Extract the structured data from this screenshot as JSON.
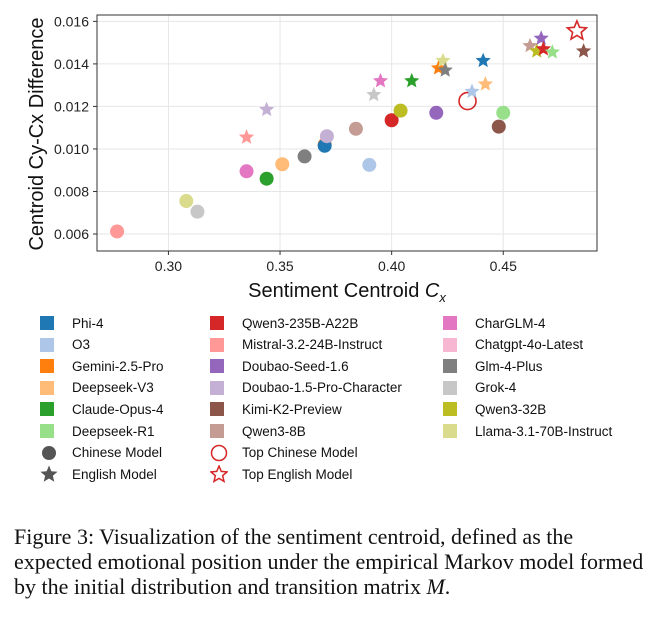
{
  "chart_data": {
    "type": "scatter",
    "xlabel_prefix": "Sentiment Centroid ",
    "xlabel_var": "C",
    "xlabel_sub": "x",
    "ylabel": "Centroid Cy-Cx Difference",
    "xlim": [
      0.268,
      0.492
    ],
    "ylim": [
      0.0052,
      0.0163
    ],
    "xticks": [
      0.3,
      0.35,
      0.4,
      0.45
    ],
    "xtick_labels": [
      "0.30",
      "0.35",
      "0.40",
      "0.45"
    ],
    "yticks": [
      0.006,
      0.008,
      0.01,
      0.012,
      0.014,
      0.016
    ],
    "ytick_labels": [
      "0.006",
      "0.008",
      "0.010",
      "0.012",
      "0.014",
      "0.016"
    ],
    "grid": true,
    "colors": {
      "phi4": "#1f77b4",
      "o3": "#aec7e8",
      "gemini": "#ff7f0e",
      "deepseekv3": "#ffbb78",
      "claude": "#2ca02c",
      "deepseekr1": "#98df8a",
      "qwen235": "#d62728",
      "mistral": "#ff9896",
      "doubaoseed": "#9467bd",
      "doubaochar": "#c5b0d5",
      "kimi": "#8c564b",
      "qwen8b": "#c49c94",
      "charglm": "#e377c2",
      "chatgpt": "#f7b6d2",
      "glm4": "#7f7f7f",
      "grok4": "#c7c7c7",
      "qwen32b": "#bcbd22",
      "llama": "#dbdb8d",
      "top": "#d62728"
    },
    "points": [
      {
        "x": 0.277,
        "y": 0.00612,
        "model": "mistral",
        "shape": "circle"
      },
      {
        "x": 0.308,
        "y": 0.00755,
        "model": "llama",
        "shape": "circle"
      },
      {
        "x": 0.313,
        "y": 0.00705,
        "model": "grok4",
        "shape": "circle"
      },
      {
        "x": 0.335,
        "y": 0.00895,
        "model": "charglm",
        "shape": "circle"
      },
      {
        "x": 0.335,
        "y": 0.01055,
        "model": "mistral",
        "shape": "star"
      },
      {
        "x": 0.344,
        "y": 0.0086,
        "model": "claude",
        "shape": "circle"
      },
      {
        "x": 0.344,
        "y": 0.01185,
        "model": "doubaochar",
        "shape": "star"
      },
      {
        "x": 0.351,
        "y": 0.00928,
        "model": "deepseekv3",
        "shape": "circle"
      },
      {
        "x": 0.361,
        "y": 0.00965,
        "model": "glm4",
        "shape": "circle"
      },
      {
        "x": 0.37,
        "y": 0.0102,
        "model": "gemini",
        "shape": "circle"
      },
      {
        "x": 0.37,
        "y": 0.01015,
        "model": "phi4",
        "shape": "circle"
      },
      {
        "x": 0.371,
        "y": 0.0106,
        "model": "doubaochar",
        "shape": "circle"
      },
      {
        "x": 0.384,
        "y": 0.01095,
        "model": "qwen8b",
        "shape": "circle"
      },
      {
        "x": 0.39,
        "y": 0.00925,
        "model": "o3",
        "shape": "circle"
      },
      {
        "x": 0.392,
        "y": 0.01255,
        "model": "grok4",
        "shape": "star"
      },
      {
        "x": 0.395,
        "y": 0.0132,
        "model": "charglm",
        "shape": "star"
      },
      {
        "x": 0.4,
        "y": 0.01135,
        "model": "qwen235",
        "shape": "circle"
      },
      {
        "x": 0.404,
        "y": 0.0118,
        "model": "qwen32b",
        "shape": "circle"
      },
      {
        "x": 0.409,
        "y": 0.0132,
        "model": "claude",
        "shape": "star"
      },
      {
        "x": 0.42,
        "y": 0.0117,
        "model": "doubaoseed",
        "shape": "circle"
      },
      {
        "x": 0.421,
        "y": 0.0138,
        "model": "gemini",
        "shape": "star"
      },
      {
        "x": 0.423,
        "y": 0.01415,
        "model": "llama",
        "shape": "star"
      },
      {
        "x": 0.424,
        "y": 0.0137,
        "model": "glm4",
        "shape": "star"
      },
      {
        "x": 0.434,
        "y": 0.01225,
        "model": "top",
        "shape": "circle-open"
      },
      {
        "x": 0.436,
        "y": 0.0127,
        "model": "o3",
        "shape": "star"
      },
      {
        "x": 0.441,
        "y": 0.01415,
        "model": "phi4",
        "shape": "star"
      },
      {
        "x": 0.442,
        "y": 0.01305,
        "model": "deepseekv3",
        "shape": "star"
      },
      {
        "x": 0.448,
        "y": 0.01105,
        "model": "kimi",
        "shape": "circle"
      },
      {
        "x": 0.45,
        "y": 0.0117,
        "model": "deepseekr1",
        "shape": "circle"
      },
      {
        "x": 0.462,
        "y": 0.01485,
        "model": "qwen8b",
        "shape": "star"
      },
      {
        "x": 0.465,
        "y": 0.0146,
        "model": "qwen32b",
        "shape": "star"
      },
      {
        "x": 0.467,
        "y": 0.0152,
        "model": "doubaoseed",
        "shape": "star"
      },
      {
        "x": 0.468,
        "y": 0.0147,
        "model": "qwen235",
        "shape": "star"
      },
      {
        "x": 0.472,
        "y": 0.01455,
        "model": "deepseekr1",
        "shape": "star"
      },
      {
        "x": 0.483,
        "y": 0.01555,
        "model": "top",
        "shape": "star-open"
      },
      {
        "x": 0.486,
        "y": 0.0146,
        "model": "kimi",
        "shape": "star"
      }
    ]
  },
  "legend": {
    "columns": [
      [
        {
          "label": "Phi-4",
          "kind": "swatch",
          "color": "#1f77b4"
        },
        {
          "label": "O3",
          "kind": "swatch",
          "color": "#aec7e8"
        },
        {
          "label": "Gemini-2.5-Pro",
          "kind": "swatch",
          "color": "#ff7f0e"
        },
        {
          "label": "Deepseek-V3",
          "kind": "swatch",
          "color": "#ffbb78"
        },
        {
          "label": "Claude-Opus-4",
          "kind": "swatch",
          "color": "#2ca02c"
        },
        {
          "label": "Deepseek-R1",
          "kind": "swatch",
          "color": "#98df8a"
        },
        {
          "label": "Chinese Model",
          "kind": "circle",
          "color": "#555555"
        },
        {
          "label": "English Model",
          "kind": "star",
          "color": "#555555"
        }
      ],
      [
        {
          "label": "Qwen3-235B-A22B",
          "kind": "swatch",
          "color": "#d62728"
        },
        {
          "label": "Mistral-3.2-24B-Instruct",
          "kind": "swatch",
          "color": "#ff9896"
        },
        {
          "label": "Doubao-Seed-1.6",
          "kind": "swatch",
          "color": "#9467bd"
        },
        {
          "label": "Doubao-1.5-Pro-Character",
          "kind": "swatch",
          "color": "#c5b0d5"
        },
        {
          "label": "Kimi-K2-Preview",
          "kind": "swatch",
          "color": "#8c564b"
        },
        {
          "label": "Qwen3-8B",
          "kind": "swatch",
          "color": "#c49c94"
        },
        {
          "label": "Top Chinese Model",
          "kind": "circle-open",
          "color": "#d62728"
        },
        {
          "label": "Top English Model",
          "kind": "star-open",
          "color": "#d62728"
        }
      ],
      [
        {
          "label": "CharGLM-4",
          "kind": "swatch",
          "color": "#e377c2"
        },
        {
          "label": "Chatgpt-4o-Latest",
          "kind": "swatch",
          "color": "#f7b6d2"
        },
        {
          "label": "Glm-4-Plus",
          "kind": "swatch",
          "color": "#7f7f7f"
        },
        {
          "label": "Grok-4",
          "kind": "swatch",
          "color": "#c7c7c7"
        },
        {
          "label": "Qwen3-32B",
          "kind": "swatch",
          "color": "#bcbd22"
        },
        {
          "label": "Llama-3.1-70B-Instruct",
          "kind": "swatch",
          "color": "#dbdb8d"
        }
      ]
    ]
  },
  "caption": {
    "text": "Figure 3: Visualization of the sentiment centroid, defined as the expected emotional position under the empirical Markov model formed by the initial distribution and transition matrix",
    "math": "M",
    "end": "."
  }
}
